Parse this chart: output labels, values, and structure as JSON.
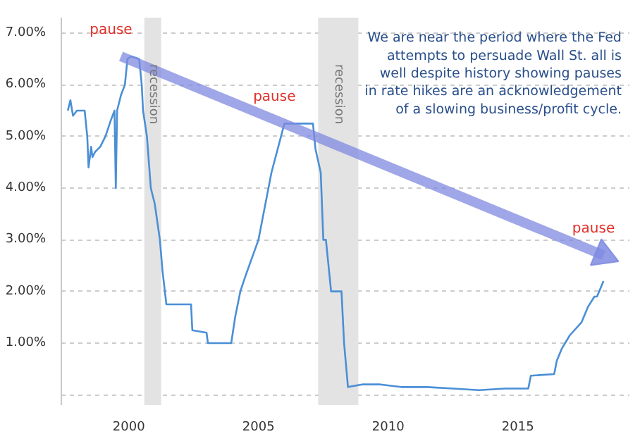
{
  "chart_data": {
    "type": "line",
    "xlim": [
      1997.4,
      2019.3
    ],
    "ylim": [
      -0.2,
      7.3
    ],
    "xticks": [
      2000,
      2005,
      2010,
      2015
    ],
    "yticks": [
      {
        "value": 0,
        "label": null
      },
      {
        "value": 1,
        "label": "1.00%"
      },
      {
        "value": 2,
        "label": "2.00%"
      },
      {
        "value": 3,
        "label": "3.00%"
      },
      {
        "value": 4,
        "label": "4.00%"
      },
      {
        "value": 5,
        "label": "5.00%"
      },
      {
        "value": 6,
        "label": "6.00%"
      },
      {
        "value": 7,
        "label": "7.00%"
      }
    ],
    "grid": "y",
    "marker": "none",
    "line_style": "solid",
    "series": [
      {
        "color": "#4a8fd6",
        "x": [
          1997.65,
          1997.75,
          1997.85,
          1998.0,
          1998.3,
          1998.4,
          1998.45,
          1998.55,
          1998.6,
          1998.7,
          1998.9,
          1999.1,
          1999.3,
          1999.45,
          1999.5,
          1999.55,
          1999.7,
          1999.85,
          1999.95,
          2000.1,
          2000.4,
          2000.5,
          2000.55,
          2000.7,
          2000.85,
          2001.0,
          2001.2,
          2001.3,
          2001.45,
          2002.4,
          2002.45,
          2003.0,
          2003.05,
          2003.95,
          2004.1,
          2004.3,
          2004.5,
          2005.0,
          2005.5,
          2006.0,
          2007.1,
          2007.2,
          2007.4,
          2007.5,
          2007.6,
          2007.8,
          2008.2,
          2008.3,
          2008.45,
          2009.0,
          2009.7,
          2010.5,
          2011.5,
          2012.5,
          2013.5,
          2014.5,
          2015.4,
          2015.5,
          2016.4,
          2016.5,
          2016.7,
          2017.0,
          2017.45,
          2017.7,
          2017.95,
          2018.05,
          2018.3
        ],
        "values": [
          5.5,
          5.7,
          5.4,
          5.5,
          5.5,
          5.0,
          4.4,
          4.8,
          4.6,
          4.7,
          4.8,
          5.0,
          5.3,
          5.5,
          4.0,
          5.5,
          5.8,
          6.0,
          6.5,
          6.55,
          6.5,
          6.0,
          5.5,
          5.0,
          4.0,
          3.7,
          3.0,
          2.4,
          1.75,
          1.75,
          1.25,
          1.2,
          1.0,
          1.0,
          1.5,
          2.0,
          2.3,
          3.0,
          4.3,
          5.25,
          5.25,
          4.75,
          4.3,
          3.0,
          3.0,
          2.0,
          2.0,
          1.0,
          0.15,
          0.2,
          0.2,
          0.15,
          0.15,
          0.12,
          0.09,
          0.12,
          0.12,
          0.37,
          0.4,
          0.66,
          0.9,
          1.15,
          1.4,
          1.7,
          1.9,
          1.9,
          2.2
        ]
      },
      {
        "color": "#7f89e0",
        "x": [
          1999.7,
          2018.3
        ],
        "values": [
          6.55,
          2.7
        ],
        "marker": "triangle"
      }
    ],
    "bands": [
      {
        "axis": "x",
        "from": 2000.6,
        "to": 2001.25,
        "label": "recession",
        "color": "#e3e3e3"
      },
      {
        "axis": "x",
        "from": 2007.3,
        "to": 2008.85,
        "label": "recession",
        "color": "#e3e3e3"
      }
    ],
    "annotations": [
      {
        "text": "pause",
        "x": 1999.7,
        "y": 6.55
      },
      {
        "text": "pause",
        "x": 2006.0,
        "y": 5.25
      },
      {
        "text": "pause",
        "x": 2018.3,
        "y": 2.7
      },
      "We are near the period where the Fed\nattempts to persuade Wall St. all is\nwell despite history showing pauses\nin rate hikes are an acknowledgement\nof a slowing business/profit cycle."
    ]
  }
}
